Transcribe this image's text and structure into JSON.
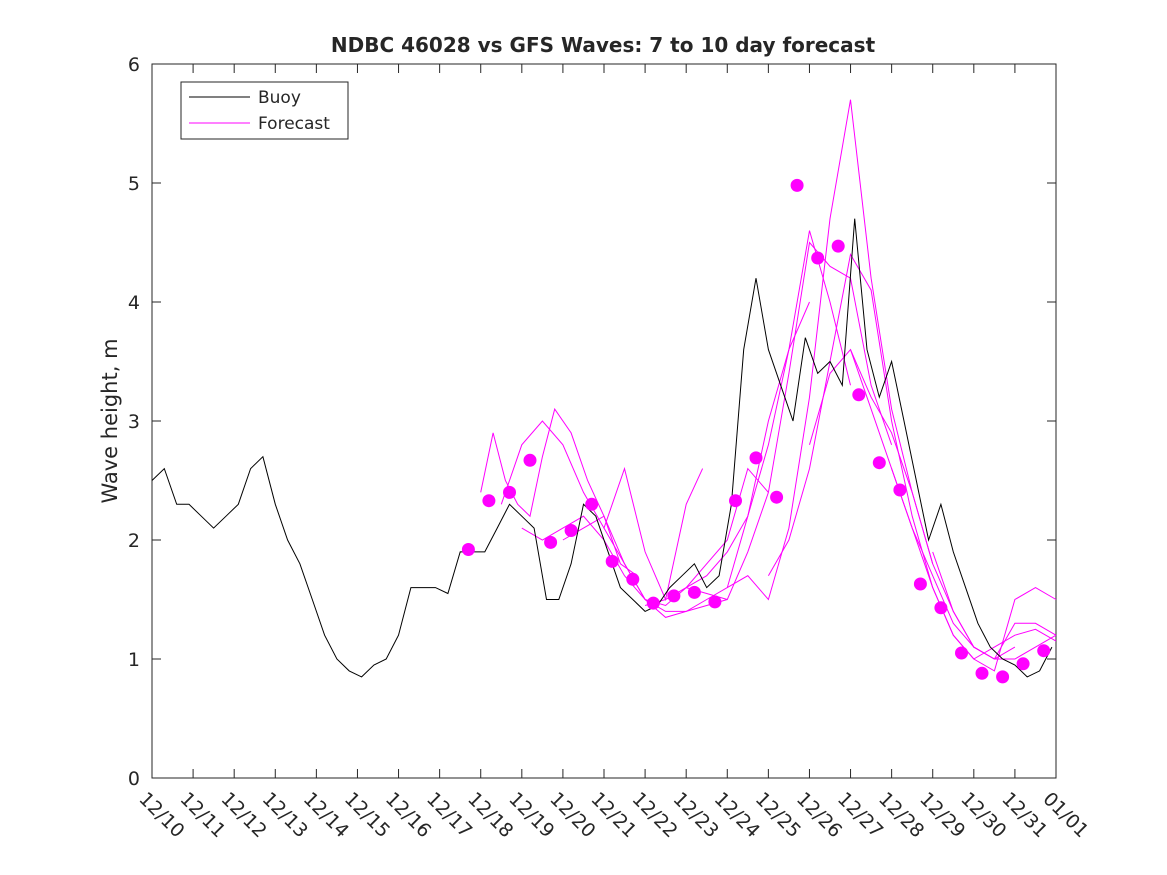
{
  "chart_data": {
    "type": "line",
    "title": "NDBC 46028 vs GFS Waves: 7 to 10 day forecast",
    "xlabel": "",
    "ylabel": "Wave height, m",
    "xlim": [
      0,
      22
    ],
    "ylim": [
      0,
      6
    ],
    "yticks": [
      "0",
      "1",
      "2",
      "3",
      "4",
      "5",
      "6"
    ],
    "xticks": [
      "12/10",
      "12/11",
      "12/12",
      "12/13",
      "12/14",
      "12/15",
      "12/16",
      "12/17",
      "12/18",
      "12/19",
      "12/20",
      "12/21",
      "12/22",
      "12/23",
      "12/24",
      "12/25",
      "12/26",
      "12/27",
      "12/28",
      "12/29",
      "12/30",
      "12/31",
      "01/01"
    ],
    "grid": false,
    "legend": {
      "position": "top-left",
      "entries": [
        "Buoy",
        "Forecast"
      ]
    },
    "colors": {
      "buoy": "#000000",
      "forecast": "#ff00ff",
      "axes": "#262626"
    },
    "buoy": {
      "name": "Buoy",
      "x": [
        0,
        0.3,
        0.6,
        0.9,
        1.2,
        1.5,
        1.8,
        2.1,
        2.4,
        2.7,
        3.0,
        3.3,
        3.6,
        3.9,
        4.2,
        4.5,
        4.8,
        5.1,
        5.4,
        5.7,
        6.0,
        6.3,
        6.6,
        6.9,
        7.2,
        7.5,
        7.8,
        8.1,
        8.4,
        8.7,
        9.0,
        9.3,
        9.6,
        9.9,
        10.2,
        10.5,
        10.8,
        11.1,
        11.4,
        11.7,
        12.0,
        12.3,
        12.6,
        12.9,
        13.2,
        13.5,
        13.8,
        14.1,
        14.4,
        14.7,
        15.0,
        15.3,
        15.6,
        15.9,
        16.2,
        16.5,
        16.8,
        17.1,
        17.4,
        17.7,
        18.0,
        18.3,
        18.6,
        18.9,
        19.2,
        19.5,
        19.8,
        20.1,
        20.4,
        20.7,
        21.0,
        21.3,
        21.6,
        21.9
      ],
      "y": [
        2.5,
        2.6,
        2.3,
        2.3,
        2.2,
        2.1,
        2.2,
        2.3,
        2.6,
        2.7,
        2.3,
        2.0,
        1.8,
        1.5,
        1.2,
        1.0,
        0.9,
        0.85,
        0.95,
        1.0,
        1.2,
        1.6,
        1.6,
        1.6,
        1.55,
        1.9,
        1.9,
        1.9,
        2.1,
        2.3,
        2.2,
        2.1,
        1.5,
        1.5,
        1.8,
        2.3,
        2.2,
        1.9,
        1.6,
        1.5,
        1.4,
        1.45,
        1.6,
        1.7,
        1.8,
        1.6,
        1.7,
        2.3,
        3.6,
        4.2,
        3.6,
        3.3,
        3.0,
        3.7,
        3.4,
        3.5,
        3.3,
        4.7,
        3.6,
        3.2,
        3.5,
        3.0,
        2.5,
        2.0,
        2.3,
        1.9,
        1.6,
        1.3,
        1.1,
        1.0,
        0.95,
        0.85,
        0.9,
        1.1
      ]
    },
    "forecast_points": {
      "name": "Forecast (daily markers)",
      "x": [
        7.7,
        8.2,
        8.7,
        9.2,
        9.7,
        10.2,
        10.7,
        11.2,
        11.7,
        12.2,
        12.7,
        13.2,
        13.7,
        14.2,
        14.7,
        15.2,
        15.7,
        16.2,
        16.7,
        17.2,
        17.7,
        18.2,
        18.7,
        19.2,
        19.7,
        20.2,
        20.7,
        21.2,
        21.7
      ],
      "y": [
        1.92,
        2.33,
        2.4,
        2.67,
        1.98,
        2.08,
        2.3,
        1.82,
        1.67,
        1.47,
        1.53,
        1.56,
        1.48,
        2.33,
        2.69,
        2.36,
        4.98,
        4.37,
        4.47,
        3.22,
        2.65,
        2.42,
        1.63,
        1.43,
        1.05,
        0.88,
        0.85,
        0.96,
        1.07
      ]
    },
    "forecast_lines": [
      {
        "x": [
          8.0,
          8.3,
          8.6,
          8.9,
          9.2,
          9.5,
          9.8,
          10.2,
          10.6,
          11.0,
          11.4,
          11.8
        ],
        "y": [
          2.4,
          2.9,
          2.5,
          2.3,
          2.2,
          2.7,
          3.1,
          2.9,
          2.5,
          2.2,
          1.8,
          1.7
        ]
      },
      {
        "x": [
          8.5,
          9.0,
          9.5,
          10.0,
          10.5,
          11.0,
          11.5,
          12.0,
          12.5,
          13.0,
          13.4
        ],
        "y": [
          2.3,
          2.8,
          3.0,
          2.8,
          2.4,
          2.1,
          2.6,
          1.9,
          1.5,
          2.3,
          2.6
        ]
      },
      {
        "x": [
          9.0,
          9.5,
          10.0,
          10.5,
          11.0,
          11.5,
          12.0,
          12.5,
          13.0,
          13.5,
          14.0
        ],
        "y": [
          2.1,
          2.0,
          2.1,
          2.2,
          2.0,
          1.7,
          1.5,
          1.4,
          1.4,
          1.45,
          1.5
        ]
      },
      {
        "x": [
          10.0,
          10.5,
          11.0,
          11.5,
          12.0,
          12.5,
          13.0,
          13.5,
          14.0,
          14.5,
          15.0
        ],
        "y": [
          2.0,
          2.1,
          2.2,
          1.8,
          1.5,
          1.45,
          1.6,
          1.8,
          2.0,
          2.6,
          2.4
        ]
      },
      {
        "x": [
          11.0,
          11.5,
          12.0,
          12.5,
          13.0,
          13.5,
          14.0,
          14.5,
          15.0,
          15.5,
          16.0
        ],
        "y": [
          2.1,
          1.8,
          1.5,
          1.35,
          1.4,
          1.5,
          1.6,
          2.2,
          3.0,
          3.6,
          4.0
        ]
      },
      {
        "x": [
          12.0,
          12.5,
          13.0,
          13.5,
          14.0,
          14.5,
          15.0,
          15.5,
          16.0,
          16.5,
          17.0
        ],
        "y": [
          1.45,
          1.5,
          1.6,
          1.7,
          1.9,
          2.2,
          2.8,
          3.6,
          4.6,
          4.0,
          3.3
        ]
      },
      {
        "x": [
          13.0,
          13.5,
          14.0,
          14.5,
          15.0,
          15.5,
          16.0,
          16.5,
          17.0,
          17.5,
          18.0
        ],
        "y": [
          1.6,
          1.55,
          1.5,
          1.9,
          2.4,
          3.4,
          4.5,
          4.3,
          4.2,
          3.3,
          2.8
        ]
      },
      {
        "x": [
          14.0,
          14.5,
          15.0,
          15.5,
          16.0,
          16.5,
          17.0,
          17.5,
          18.0,
          18.5,
          19.0
        ],
        "y": [
          1.6,
          1.7,
          1.5,
          2.1,
          3.2,
          4.7,
          5.7,
          4.2,
          3.1,
          2.4,
          1.8
        ]
      },
      {
        "x": [
          15.0,
          15.5,
          16.0,
          16.5,
          17.0,
          17.5,
          18.0,
          18.5,
          19.0,
          19.5,
          20.0
        ],
        "y": [
          1.7,
          2.0,
          2.6,
          3.5,
          4.4,
          4.1,
          3.0,
          2.2,
          1.6,
          1.2,
          1.0
        ]
      },
      {
        "x": [
          16.0,
          16.5,
          17.0,
          17.5,
          18.0,
          18.5,
          19.0,
          19.5,
          20.0,
          20.5,
          21.0
        ],
        "y": [
          2.8,
          3.4,
          3.6,
          3.2,
          2.9,
          2.4,
          1.8,
          1.4,
          1.1,
          1.0,
          1.1
        ]
      },
      {
        "x": [
          17.0,
          17.5,
          18.0,
          18.5,
          19.0,
          19.5,
          20.0,
          20.5,
          21.0,
          21.5,
          22.0
        ],
        "y": [
          3.6,
          3.1,
          2.6,
          2.1,
          1.7,
          1.3,
          1.1,
          1.0,
          1.0,
          1.1,
          1.2
        ]
      },
      {
        "x": [
          18.0,
          18.5,
          19.0,
          19.5,
          20.0,
          20.5,
          21.0,
          21.5,
          22.0
        ],
        "y": [
          2.6,
          2.1,
          1.6,
          1.2,
          1.0,
          0.9,
          1.5,
          1.6,
          1.5
        ]
      },
      {
        "x": [
          19.0,
          19.5,
          20.0,
          20.5,
          21.0,
          21.5,
          22.0
        ],
        "y": [
          1.9,
          1.4,
          1.1,
          1.0,
          1.3,
          1.3,
          1.2
        ]
      },
      {
        "x": [
          20.0,
          20.5,
          21.0,
          21.5,
          22.0
        ],
        "y": [
          1.0,
          1.1,
          1.2,
          1.25,
          1.15
        ]
      }
    ]
  }
}
